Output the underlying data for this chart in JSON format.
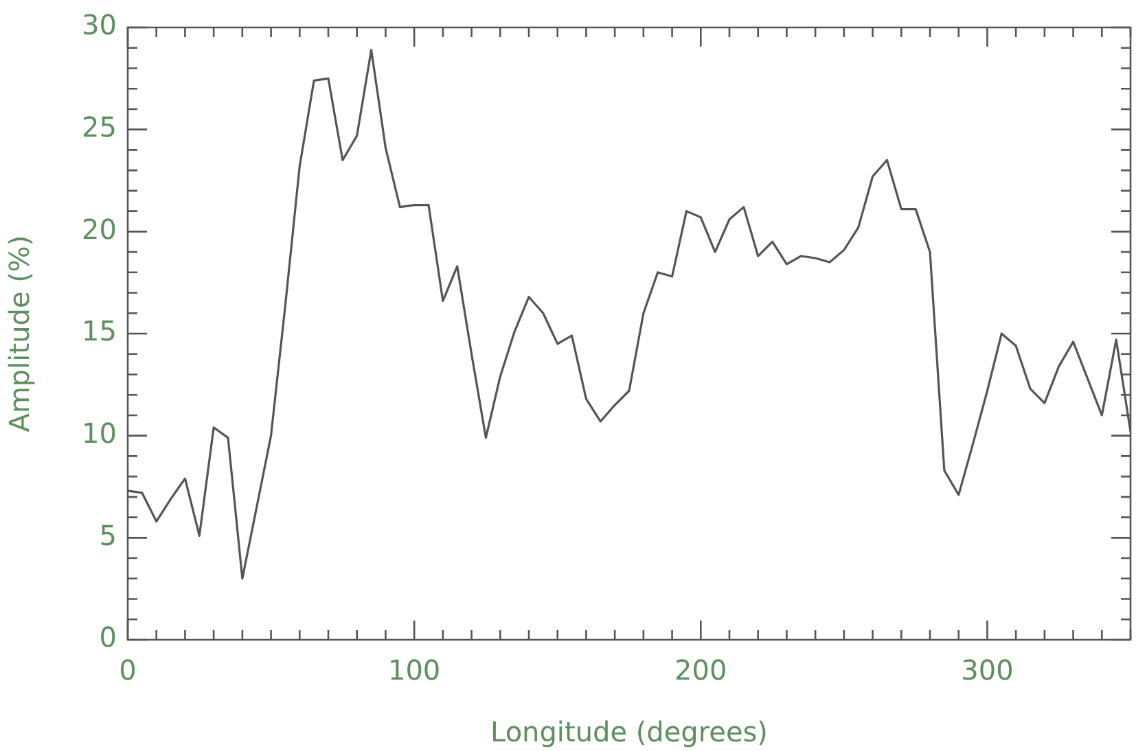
{
  "chart_data": {
    "type": "line",
    "xlabel": "Longitude (degrees)",
    "ylabel": "Amplitude (%)",
    "x": [
      0,
      5,
      10,
      15,
      20,
      25,
      30,
      35,
      40,
      45,
      50,
      55,
      60,
      65,
      70,
      75,
      80,
      85,
      90,
      95,
      100,
      105,
      110,
      115,
      120,
      125,
      130,
      135,
      140,
      145,
      150,
      155,
      160,
      165,
      170,
      175,
      180,
      185,
      190,
      195,
      200,
      205,
      210,
      215,
      220,
      225,
      230,
      235,
      240,
      245,
      250,
      255,
      260,
      265,
      270,
      275,
      280,
      285,
      290,
      295,
      300,
      305,
      310,
      315,
      320,
      325,
      330,
      335,
      340,
      345,
      350
    ],
    "series": [
      {
        "color": "#555555",
        "values": [
          7.3,
          7.2,
          5.8,
          6.9,
          7.9,
          5.1,
          10.4,
          9.9,
          3.0,
          6.5,
          10.0,
          16.4,
          23.2,
          27.4,
          27.5,
          23.5,
          24.7,
          28.9,
          24.1,
          21.2,
          21.3,
          21.3,
          16.6,
          18.3,
          14.0,
          9.9,
          12.9,
          15.1,
          16.8,
          16.0,
          14.5,
          14.9,
          11.8,
          10.7,
          11.5,
          12.2,
          16.0,
          18.0,
          17.8,
          21.0,
          20.7,
          19.0,
          20.6,
          21.2,
          18.8,
          19.5,
          18.4,
          18.8,
          18.7,
          18.5,
          19.1,
          20.2,
          22.7,
          23.5,
          21.1,
          21.1,
          19.0,
          8.3,
          7.1,
          9.6,
          12.2,
          15.0,
          14.4,
          12.3,
          11.6,
          13.4,
          14.6,
          12.8,
          11.0,
          14.7,
          10.2
        ]
      }
    ],
    "xlim": [
      0,
      350
    ],
    "xticks": [
      0,
      {
        "value": 10,
        "label": null
      },
      {
        "value": 20,
        "label": null
      },
      {
        "value": 30,
        "label": null
      },
      {
        "value": 40,
        "label": null
      },
      {
        "value": 50,
        "label": null
      },
      {
        "value": 60,
        "label": null
      },
      {
        "value": 70,
        "label": null
      },
      {
        "value": 80,
        "label": null
      },
      {
        "value": 90,
        "label": null
      },
      100,
      {
        "value": 110,
        "label": null
      },
      {
        "value": 120,
        "label": null
      },
      {
        "value": 130,
        "label": null
      },
      {
        "value": 140,
        "label": null
      },
      {
        "value": 150,
        "label": null
      },
      {
        "value": 160,
        "label": null
      },
      {
        "value": 170,
        "label": null
      },
      {
        "value": 180,
        "label": null
      },
      {
        "value": 190,
        "label": null
      },
      200,
      {
        "value": 210,
        "label": null
      },
      {
        "value": 220,
        "label": null
      },
      {
        "value": 230,
        "label": null
      },
      {
        "value": 240,
        "label": null
      },
      {
        "value": 250,
        "label": null
      },
      {
        "value": 260,
        "label": null
      },
      {
        "value": 270,
        "label": null
      },
      {
        "value": 280,
        "label": null
      },
      {
        "value": 290,
        "label": null
      },
      300,
      {
        "value": 310,
        "label": null
      },
      {
        "value": 320,
        "label": null
      },
      {
        "value": 330,
        "label": null
      },
      {
        "value": 340,
        "label": null
      },
      {
        "value": 350,
        "label": null
      }
    ],
    "ylim": [
      0,
      30
    ],
    "yticks": [
      0,
      {
        "value": 1,
        "label": null
      },
      {
        "value": 2,
        "label": null
      },
      {
        "value": 3,
        "label": null
      },
      {
        "value": 4,
        "label": null
      },
      5,
      {
        "value": 6,
        "label": null
      },
      {
        "value": 7,
        "label": null
      },
      {
        "value": 8,
        "label": null
      },
      {
        "value": 9,
        "label": null
      },
      10,
      {
        "value": 11,
        "label": null
      },
      {
        "value": 12,
        "label": null
      },
      {
        "value": 13,
        "label": null
      },
      {
        "value": 14,
        "label": null
      },
      15,
      {
        "value": 16,
        "label": null
      },
      {
        "value": 17,
        "label": null
      },
      {
        "value": 18,
        "label": null
      },
      {
        "value": 19,
        "label": null
      },
      20,
      {
        "value": 21,
        "label": null
      },
      {
        "value": 22,
        "label": null
      },
      {
        "value": 23,
        "label": null
      },
      {
        "value": 24,
        "label": null
      },
      25,
      {
        "value": 26,
        "label": null
      },
      {
        "value": 27,
        "label": null
      },
      {
        "value": 28,
        "label": null
      },
      {
        "value": 29,
        "label": null
      },
      30
    ],
    "grid": false,
    "legend": false,
    "marker": "none",
    "line_style": "solid"
  }
}
